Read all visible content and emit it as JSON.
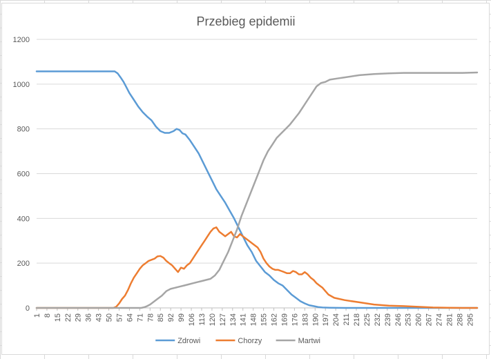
{
  "chart_data": {
    "type": "line",
    "title": "Przebieg epidemii",
    "xlabel": "",
    "ylabel": "",
    "ylim": [
      0,
      1200
    ],
    "yticks": [
      0,
      200,
      400,
      600,
      800,
      1000,
      1200
    ],
    "xlim": [
      1,
      300
    ],
    "xticks": [
      1,
      8,
      15,
      22,
      29,
      36,
      43,
      50,
      57,
      64,
      71,
      78,
      85,
      92,
      99,
      106,
      113,
      120,
      127,
      134,
      141,
      148,
      155,
      162,
      169,
      176,
      183,
      190,
      197,
      204,
      211,
      218,
      225,
      232,
      239,
      246,
      253,
      260,
      267,
      274,
      281,
      288,
      295
    ],
    "grid": "horizontal",
    "legend": "bottom",
    "series": [
      {
        "name": "Zdrowi",
        "color": "#5b9bd5",
        "x": [
          1,
          54,
          56,
          58,
          60,
          62,
          64,
          67,
          70,
          73,
          76,
          79,
          82,
          85,
          88,
          91,
          94,
          96,
          98,
          100,
          102,
          105,
          108,
          111,
          114,
          117,
          120,
          123,
          126,
          129,
          132,
          135,
          138,
          141,
          144,
          147,
          150,
          153,
          156,
          159,
          162,
          165,
          168,
          171,
          174,
          177,
          180,
          183,
          186,
          189,
          192,
          195,
          200,
          210,
          220,
          240,
          260,
          280,
          300
        ],
        "values": [
          1057,
          1057,
          1048,
          1030,
          1010,
          985,
          960,
          930,
          900,
          875,
          855,
          838,
          810,
          790,
          782,
          782,
          790,
          800,
          795,
          780,
          775,
          750,
          720,
          690,
          650,
          610,
          570,
          530,
          500,
          470,
          435,
          400,
          360,
          320,
          280,
          250,
          210,
          185,
          160,
          145,
          125,
          110,
          100,
          80,
          60,
          45,
          30,
          20,
          12,
          8,
          4,
          2,
          1,
          0,
          0,
          0,
          0,
          0,
          0
        ]
      },
      {
        "name": "Chorzy",
        "color": "#ed7d31",
        "x": [
          1,
          53,
          55,
          57,
          59,
          61,
          63,
          65,
          67,
          69,
          71,
          73,
          75,
          77,
          79,
          81,
          83,
          85,
          87,
          89,
          91,
          93,
          95,
          97,
          99,
          101,
          103,
          105,
          107,
          109,
          111,
          113,
          115,
          117,
          119,
          121,
          123,
          125,
          127,
          129,
          131,
          133,
          135,
          137,
          139,
          141,
          143,
          145,
          147,
          149,
          151,
          153,
          155,
          157,
          159,
          161,
          163,
          165,
          167,
          169,
          171,
          173,
          175,
          177,
          179,
          181,
          183,
          185,
          187,
          189,
          191,
          193,
          195,
          197,
          199,
          203,
          210,
          220,
          230,
          240,
          250,
          260,
          270,
          280,
          290,
          300
        ],
        "values": [
          0,
          0,
          5,
          20,
          40,
          55,
          80,
          110,
          135,
          155,
          175,
          190,
          200,
          210,
          215,
          220,
          230,
          232,
          225,
          210,
          200,
          190,
          175,
          160,
          180,
          175,
          190,
          200,
          220,
          240,
          260,
          280,
          300,
          320,
          340,
          355,
          360,
          340,
          330,
          320,
          330,
          340,
          320,
          315,
          330,
          320,
          310,
          300,
          290,
          280,
          270,
          250,
          220,
          200,
          185,
          175,
          170,
          170,
          165,
          160,
          155,
          155,
          165,
          160,
          150,
          150,
          160,
          150,
          135,
          125,
          110,
          100,
          90,
          75,
          60,
          45,
          35,
          25,
          15,
          10,
          8,
          5,
          2,
          1,
          0,
          0
        ]
      },
      {
        "name": "Martwi",
        "color": "#a5a5a5",
        "x": [
          1,
          72,
          74,
          76,
          78,
          80,
          83,
          86,
          89,
          92,
          95,
          98,
          101,
          104,
          107,
          110,
          113,
          116,
          119,
          122,
          125,
          128,
          131,
          134,
          137,
          140,
          143,
          146,
          149,
          152,
          155,
          158,
          161,
          164,
          167,
          170,
          173,
          176,
          179,
          182,
          185,
          188,
          191,
          194,
          197,
          200,
          205,
          210,
          220,
          230,
          240,
          250,
          260,
          270,
          280,
          290,
          300
        ],
        "values": [
          0,
          0,
          3,
          8,
          15,
          25,
          40,
          55,
          75,
          85,
          90,
          95,
          100,
          105,
          110,
          115,
          120,
          125,
          130,
          145,
          170,
          210,
          250,
          300,
          350,
          410,
          460,
          510,
          560,
          610,
          660,
          700,
          730,
          760,
          780,
          800,
          820,
          845,
          870,
          900,
          930,
          960,
          990,
          1005,
          1010,
          1020,
          1025,
          1030,
          1040,
          1045,
          1048,
          1050,
          1050,
          1050,
          1050,
          1050,
          1052
        ]
      }
    ]
  }
}
